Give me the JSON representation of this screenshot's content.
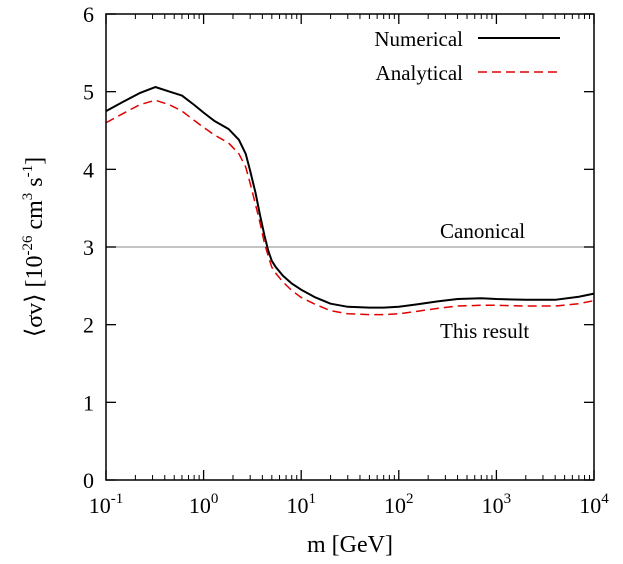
{
  "chart_data": {
    "type": "line",
    "title": "",
    "xlabel": "m [GeV]",
    "ylabel": {
      "prefix": "⟨σv⟩ [10",
      "exp1": "-26",
      "mid1": " cm",
      "exp2": "3",
      "mid2": " s",
      "exp3": "-1",
      "suffix": "]"
    },
    "xscale": "log",
    "xlim": [
      0.1,
      10000
    ],
    "ylim": [
      0,
      6
    ],
    "grid": false,
    "legend_position": "top-right",
    "x_ticks": [
      {
        "value": 0.1,
        "base": "10",
        "exp": "-1"
      },
      {
        "value": 1,
        "base": "10",
        "exp": "0"
      },
      {
        "value": 10,
        "base": "10",
        "exp": "1"
      },
      {
        "value": 100,
        "base": "10",
        "exp": "2"
      },
      {
        "value": 1000,
        "base": "10",
        "exp": "3"
      },
      {
        "value": 10000,
        "base": "10",
        "exp": "4"
      }
    ],
    "y_ticks": [
      "0",
      "1",
      "2",
      "3",
      "4",
      "5",
      "6"
    ],
    "series": [
      {
        "name": "Numerical",
        "color": "#000000",
        "style": "solid",
        "x": [
          0.1,
          0.15,
          0.22,
          0.32,
          0.45,
          0.6,
          0.8,
          1.0,
          1.3,
          1.8,
          2.3,
          2.7,
          3.0,
          3.4,
          3.8,
          4.2,
          4.6,
          5.0,
          5.5,
          6.5,
          8,
          10,
          14,
          20,
          30,
          50,
          70,
          100,
          150,
          250,
          400,
          700,
          1000,
          2000,
          4000,
          7000,
          10000
        ],
        "y": [
          4.75,
          4.87,
          4.98,
          5.06,
          5.0,
          4.95,
          4.83,
          4.73,
          4.62,
          4.52,
          4.38,
          4.2,
          3.98,
          3.7,
          3.4,
          3.15,
          2.95,
          2.82,
          2.74,
          2.63,
          2.53,
          2.45,
          2.35,
          2.27,
          2.23,
          2.22,
          2.22,
          2.23,
          2.26,
          2.3,
          2.33,
          2.34,
          2.33,
          2.32,
          2.32,
          2.36,
          2.4
        ]
      },
      {
        "name": "Analytical",
        "color": "#e00000",
        "style": "dashed",
        "x": [
          0.1,
          0.15,
          0.22,
          0.32,
          0.45,
          0.6,
          0.8,
          1.0,
          1.3,
          1.8,
          2.3,
          2.7,
          3.0,
          3.4,
          3.8,
          4.2,
          4.6,
          5.0,
          5.5,
          6.5,
          8,
          10,
          14,
          20,
          30,
          50,
          70,
          100,
          150,
          250,
          400,
          700,
          1000,
          2000,
          4000,
          7000,
          10000
        ],
        "y": [
          4.6,
          4.72,
          4.83,
          4.89,
          4.83,
          4.75,
          4.63,
          4.54,
          4.44,
          4.34,
          4.2,
          4.03,
          3.82,
          3.55,
          3.3,
          3.05,
          2.88,
          2.74,
          2.66,
          2.55,
          2.44,
          2.35,
          2.26,
          2.18,
          2.14,
          2.13,
          2.13,
          2.14,
          2.17,
          2.21,
          2.24,
          2.25,
          2.25,
          2.24,
          2.24,
          2.27,
          2.31
        ]
      }
    ],
    "reference_line": {
      "y": 3.0,
      "color": "#a0a0a0"
    },
    "annotations": {
      "canonical": "Canonical",
      "this_result": "This result"
    }
  }
}
